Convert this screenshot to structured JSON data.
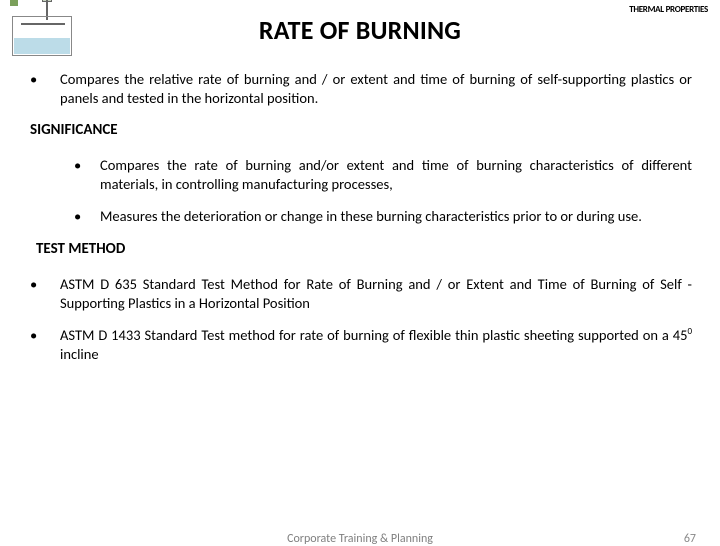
{
  "header": {
    "title": "RATE OF BURNING",
    "logo_right_a": "THERMAL",
    "logo_right_b": "PROPERTIES"
  },
  "intro_bullet": "•",
  "intro_text": "Compares the relative rate of burning and / or extent and time of burning of self-supporting plastics or panels and tested in the horizontal position.",
  "significance": {
    "heading": "SIGNIFICANCE",
    "items": [
      {
        "bullet": "•",
        "text": "Compares the rate of burning and/or extent and time of burning characteristics of different materials, in controlling manufacturing processes,"
      },
      {
        "bullet": "•",
        "text": "Measures the deterioration or change in these burning characteristics prior to or during use."
      }
    ]
  },
  "test_method": {
    "heading": "TEST METHOD",
    "items": [
      {
        "bullet": "•",
        "text": "ASTM D 635 Standard Test Method for Rate of Burning and / or Extent and Time of Burning of Self - Supporting Plastics in a Horizontal Position"
      },
      {
        "bullet": "•",
        "text_a": "ASTM D 1433 Standard Test method for rate of burning of flexible thin plastic sheeting supported on a 45",
        "sup": "0",
        "text_b": " incline"
      }
    ]
  },
  "footer": {
    "center": "Corporate Training & Planning",
    "page": "67"
  }
}
